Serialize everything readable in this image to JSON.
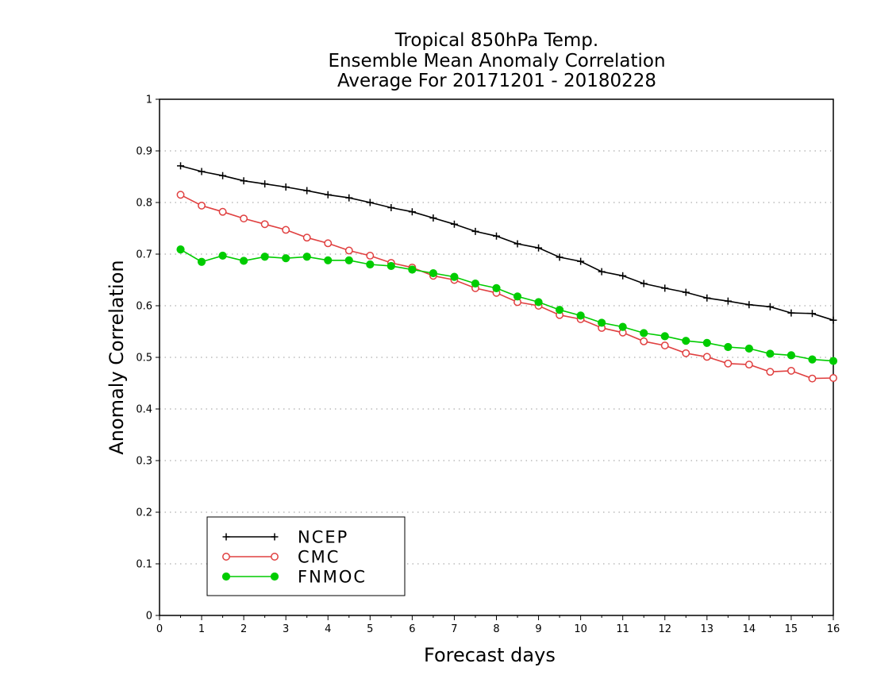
{
  "chart_data": {
    "type": "line",
    "title": "Tropical 850hPa Temp.",
    "subtitle": [
      "Ensemble Mean Anomaly Correlation",
      "Average For 20171201 - 20180228"
    ],
    "xlabel": "Forecast days",
    "ylabel": "Anomaly Correlation",
    "xlim": [
      0,
      16
    ],
    "ylim": [
      0,
      1
    ],
    "x_ticks": [
      "0",
      "1",
      "2",
      "3",
      "4",
      "5",
      "6",
      "7",
      "8",
      "9",
      "10",
      "11",
      "12",
      "13",
      "14",
      "15",
      "16"
    ],
    "y_ticks": [
      "0",
      "0.1",
      "0.2",
      "0.3",
      "0.4",
      "0.5",
      "0.6",
      "0.7",
      "0.8",
      "0.9",
      "1"
    ],
    "grid": true,
    "legend_position": "bottom-left",
    "x": [
      0.5,
      1,
      1.5,
      2,
      2.5,
      3,
      3.5,
      4,
      4.5,
      5,
      5.5,
      6,
      6.5,
      7,
      7.5,
      8,
      8.5,
      9,
      9.5,
      10,
      10.5,
      11,
      11.5,
      12,
      12.5,
      13,
      13.5,
      14,
      14.5,
      15,
      15.5,
      16
    ],
    "series": [
      {
        "name": "NCEP",
        "color": "#000000",
        "marker": "plus",
        "values": [
          0.871,
          0.86,
          0.852,
          0.842,
          0.836,
          0.83,
          0.823,
          0.815,
          0.809,
          0.8,
          0.79,
          0.782,
          0.77,
          0.758,
          0.744,
          0.735,
          0.72,
          0.712,
          0.694,
          0.686,
          0.666,
          0.658,
          0.643,
          0.634,
          0.626,
          0.615,
          0.609,
          0.602,
          0.598,
          0.586,
          0.585,
          0.572
        ]
      },
      {
        "name": "CMC",
        "color": "#e04040",
        "marker": "open-circle",
        "values": [
          0.815,
          0.794,
          0.782,
          0.769,
          0.758,
          0.747,
          0.732,
          0.721,
          0.707,
          0.697,
          0.683,
          0.674,
          0.658,
          0.65,
          0.634,
          0.625,
          0.607,
          0.6,
          0.582,
          0.574,
          0.557,
          0.548,
          0.531,
          0.523,
          0.508,
          0.501,
          0.488,
          0.486,
          0.472,
          0.474,
          0.459,
          0.46
        ]
      },
      {
        "name": "FNMOC",
        "color": "#00cc00",
        "marker": "filled-circle",
        "values": [
          0.709,
          0.685,
          0.697,
          0.687,
          0.695,
          0.692,
          0.695,
          0.688,
          0.688,
          0.68,
          0.677,
          0.67,
          0.663,
          0.656,
          0.643,
          0.634,
          0.618,
          0.607,
          0.592,
          0.581,
          0.567,
          0.559,
          0.547,
          0.541,
          0.532,
          0.528,
          0.52,
          0.517,
          0.507,
          0.504,
          0.496,
          0.493
        ]
      }
    ]
  }
}
